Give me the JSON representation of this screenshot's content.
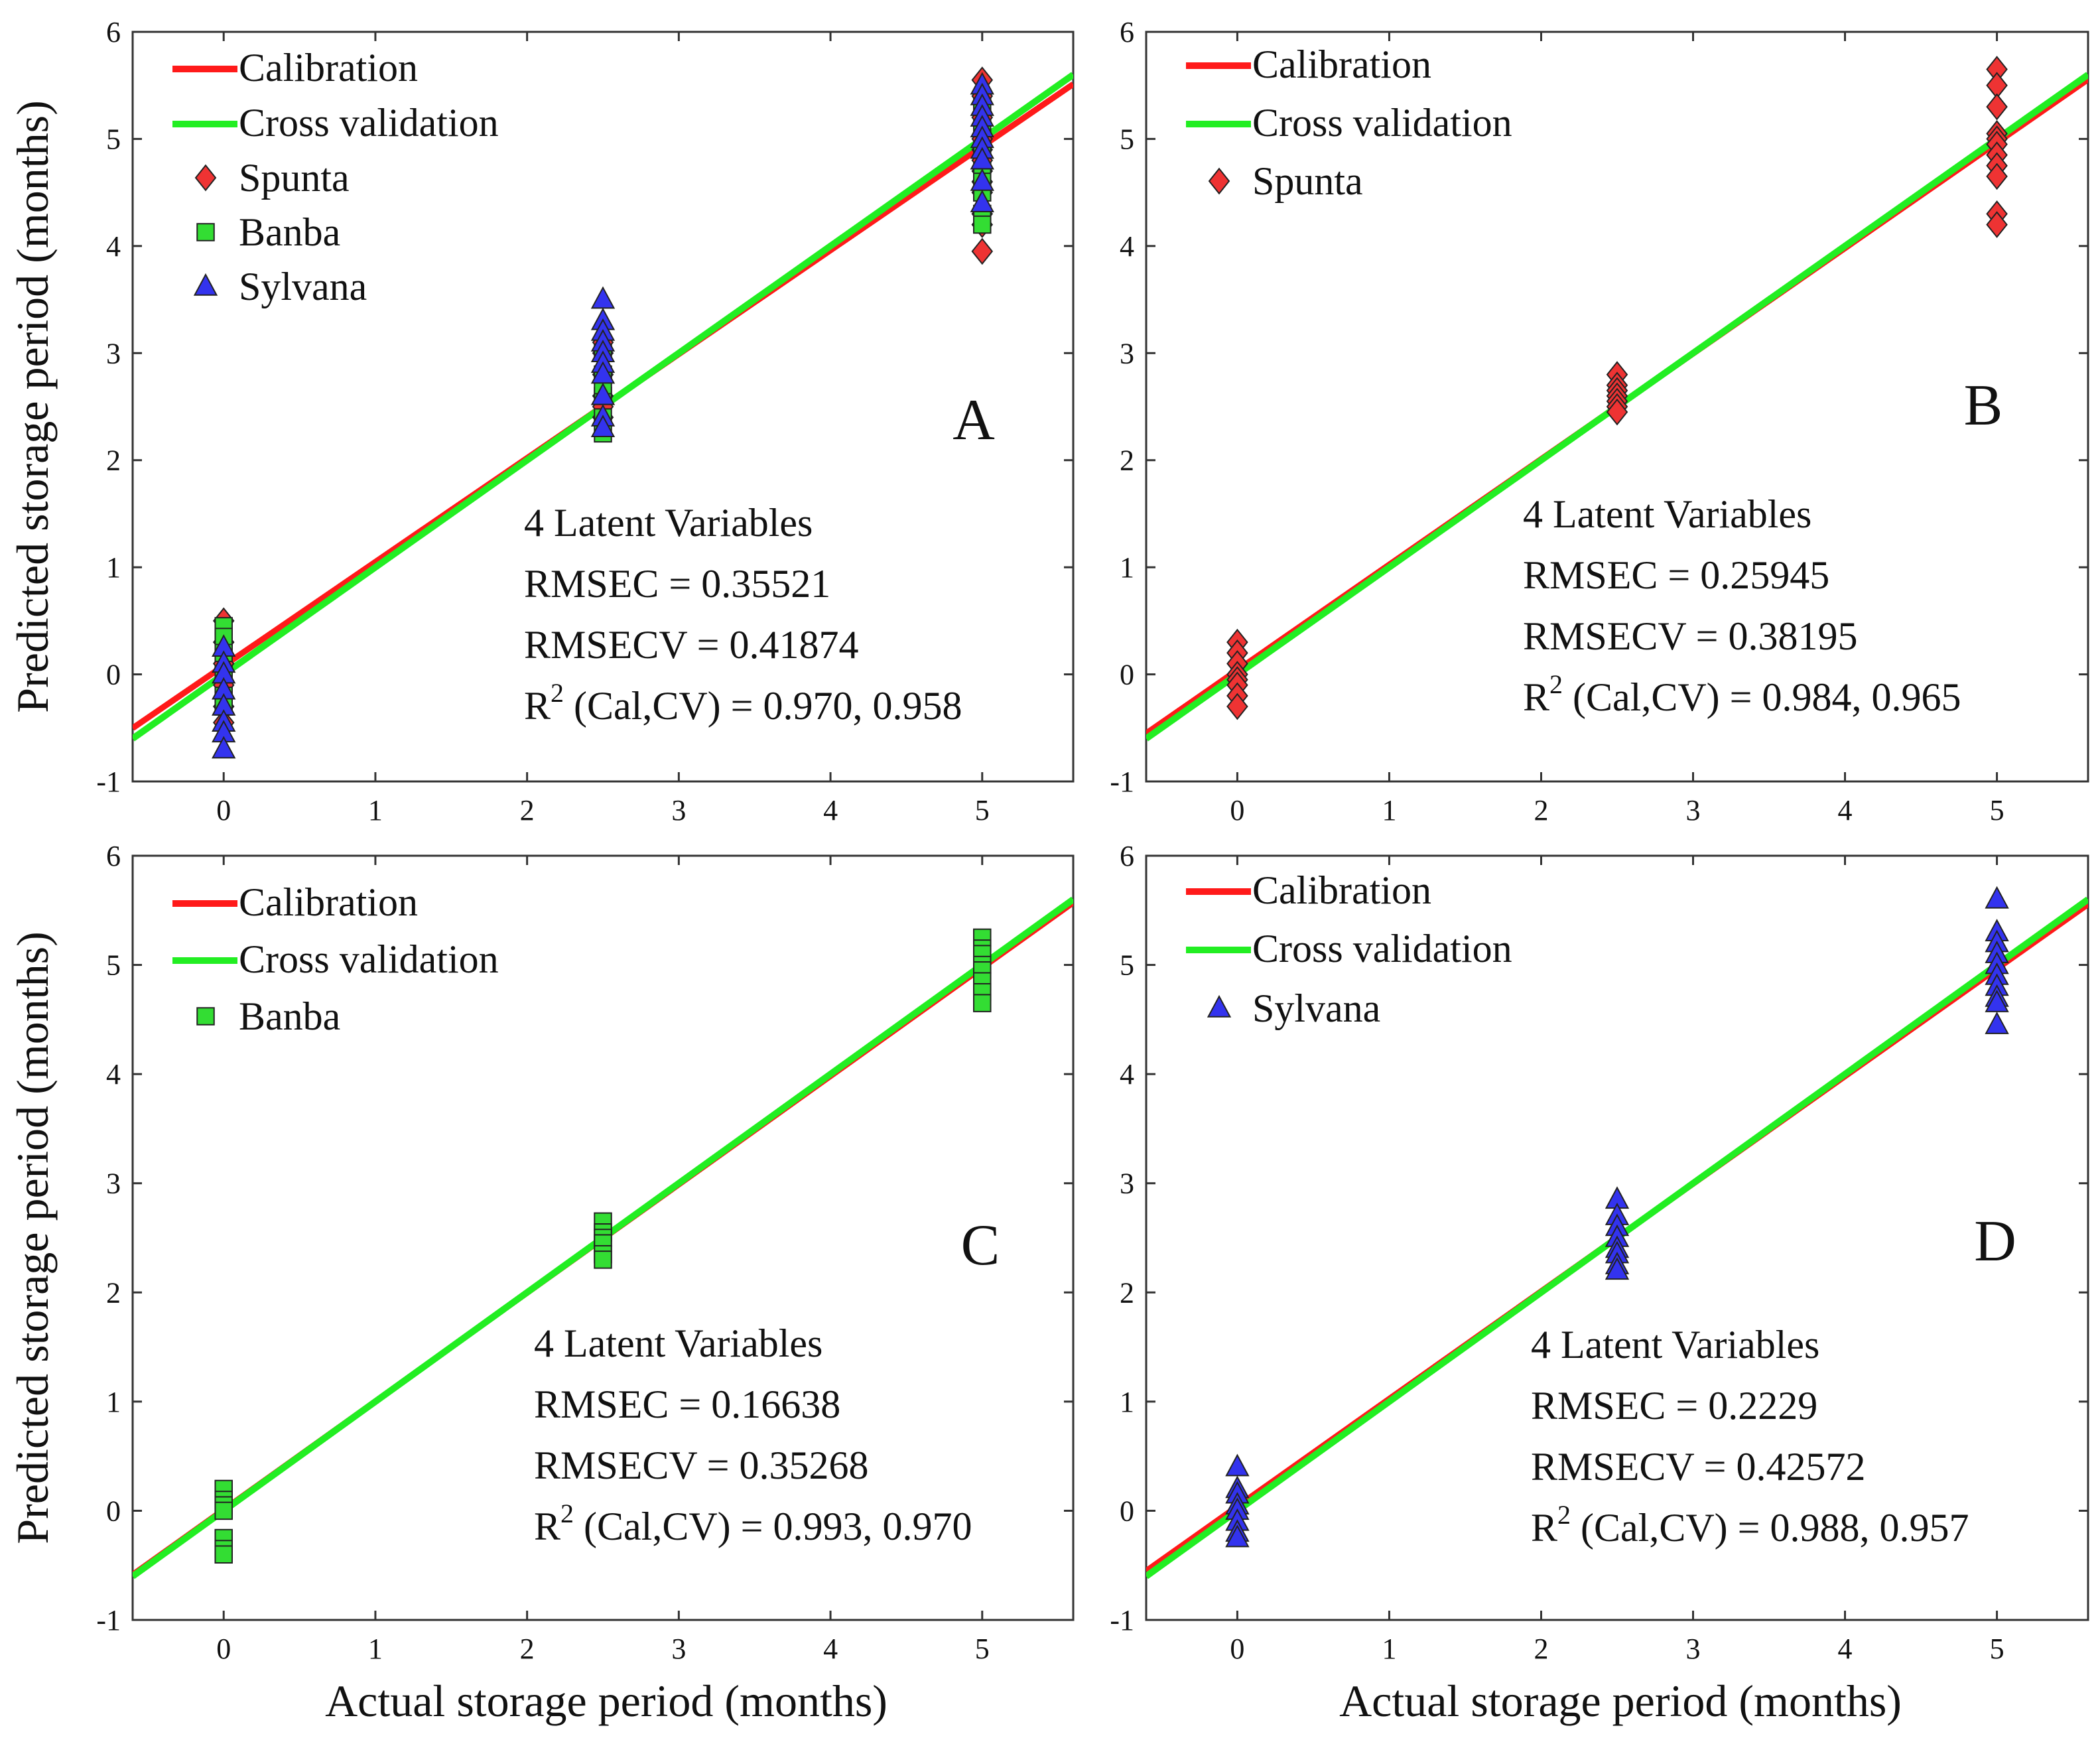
{
  "figure": {
    "xlabel": "Actual storage period (months)",
    "ylabel": "Predicted storage period (months)"
  },
  "colors": {
    "calibration": "#ff1a1a",
    "cross_validation": "#22ee22",
    "spunta": "#ee3333",
    "banba": "#33dd33",
    "sylvana": "#3333ee"
  },
  "chart_data": [
    {
      "type": "scatter",
      "panel": "A",
      "xlim": [
        -0.6,
        5.6
      ],
      "ylim": [
        -1,
        6
      ],
      "xticks": [
        0,
        1,
        2,
        3,
        4,
        5
      ],
      "yticks": [
        -1,
        0,
        1,
        2,
        3,
        4,
        5,
        6
      ],
      "xlabel": "",
      "ylabel": "Predicted storage period (months)",
      "lines": [
        {
          "name": "Calibration",
          "color": "#ff1a1a",
          "slope": 0.97,
          "intercept": 0.08
        },
        {
          "name": "Cross validation",
          "color": "#22ee22",
          "slope": 1.0,
          "intercept": 0.0
        }
      ],
      "series": [
        {
          "name": "Spunta",
          "marker": "diamond",
          "color": "#ee3333",
          "x": [
            0,
            0,
            0,
            0,
            0,
            0,
            2.5,
            2.5,
            2.5,
            2.5,
            2.5,
            2.5,
            5,
            5,
            5,
            5,
            5,
            5,
            5,
            5,
            5,
            5,
            5,
            5
          ],
          "y": [
            0.5,
            0.3,
            0.1,
            -0.1,
            -0.3,
            -0.45,
            2.4,
            2.6,
            2.8,
            3.0,
            3.1,
            2.5,
            5.55,
            5.4,
            5.2,
            5.0,
            4.9,
            4.8,
            4.7,
            4.6,
            4.5,
            4.3,
            4.2,
            3.95
          ]
        },
        {
          "name": "Banba",
          "marker": "square",
          "color": "#33dd33",
          "x": [
            0,
            0,
            0,
            0,
            0,
            0,
            2.5,
            2.5,
            2.5,
            2.5,
            2.5,
            2.5,
            5,
            5,
            5,
            5,
            5,
            5,
            5,
            5
          ],
          "y": [
            0.45,
            0.35,
            0.2,
            0.0,
            -0.2,
            -0.3,
            2.25,
            2.4,
            2.6,
            2.8,
            3.0,
            2.7,
            5.3,
            5.1,
            4.9,
            4.7,
            4.6,
            4.5,
            4.3,
            4.2
          ]
        },
        {
          "name": "Sylvana",
          "marker": "triangle",
          "color": "#3333ee",
          "x": [
            0,
            0,
            0,
            0,
            0,
            0,
            0,
            0,
            2.5,
            2.5,
            2.5,
            2.5,
            2.5,
            2.5,
            2.5,
            2.5,
            2.5,
            2.5,
            5,
            5,
            5,
            5,
            5,
            5,
            5,
            5,
            5,
            5
          ],
          "y": [
            0.25,
            0.1,
            0.0,
            -0.15,
            -0.3,
            -0.45,
            -0.55,
            -0.7,
            3.5,
            3.3,
            3.2,
            3.1,
            3.0,
            2.9,
            2.8,
            2.6,
            2.4,
            2.3,
            5.5,
            5.4,
            5.3,
            5.2,
            5.1,
            5.0,
            4.9,
            4.8,
            4.6,
            4.4
          ]
        }
      ],
      "stats": {
        "latent": "4 Latent Variables",
        "rmsec": "RMSEC = 0.35521",
        "rmsecv": "RMSECV = 0.41874",
        "r2_prefix": "R",
        "r2_sup": "2",
        "r2_suffix": " (Cal,CV) = 0.970, 0.958"
      },
      "legend": [
        "Calibration",
        "Cross validation",
        "Spunta",
        "Banba",
        "Sylvana"
      ]
    },
    {
      "type": "scatter",
      "panel": "B",
      "xlim": [
        -0.6,
        5.6
      ],
      "ylim": [
        -1,
        6
      ],
      "xticks": [
        0,
        1,
        2,
        3,
        4,
        5
      ],
      "yticks": [
        -1,
        0,
        1,
        2,
        3,
        4,
        5,
        6
      ],
      "xlabel": "",
      "ylabel": "",
      "lines": [
        {
          "name": "Calibration",
          "color": "#ff1a1a",
          "slope": 0.985,
          "intercept": 0.04
        },
        {
          "name": "Cross validation",
          "color": "#22ee22",
          "slope": 1.0,
          "intercept": 0.0
        }
      ],
      "series": [
        {
          "name": "Spunta",
          "marker": "diamond",
          "color": "#ee3333",
          "x": [
            0,
            0,
            0,
            0,
            0,
            0,
            0,
            0,
            2.5,
            2.5,
            2.5,
            2.5,
            2.5,
            2.5,
            2.5,
            5,
            5,
            5,
            5,
            5,
            5,
            5,
            5,
            5,
            5,
            5
          ],
          "y": [
            0.3,
            0.2,
            0.1,
            0.0,
            -0.05,
            -0.1,
            -0.2,
            -0.3,
            2.8,
            2.7,
            2.65,
            2.6,
            2.55,
            2.5,
            2.45,
            5.65,
            5.5,
            5.3,
            5.05,
            5.0,
            4.95,
            4.85,
            4.75,
            4.65,
            4.3,
            4.2
          ]
        }
      ],
      "stats": {
        "latent": "4 Latent Variables",
        "rmsec": "RMSEC = 0.25945",
        "rmsecv": "RMSECV = 0.38195",
        "r2_prefix": "R",
        "r2_sup": "2",
        "r2_suffix": " (Cal,CV) = 0.984, 0.965"
      },
      "legend": [
        "Calibration",
        "Cross validation",
        "Spunta"
      ]
    },
    {
      "type": "scatter",
      "panel": "C",
      "xlim": [
        -0.6,
        5.6
      ],
      "ylim": [
        -1,
        6
      ],
      "xticks": [
        0,
        1,
        2,
        3,
        4,
        5
      ],
      "yticks": [
        -1,
        0,
        1,
        2,
        3,
        4,
        5,
        6
      ],
      "xlabel": "Actual storage period (months)",
      "ylabel": "Predicted storage period (months)",
      "lines": [
        {
          "name": "Calibration",
          "color": "#ff1a1a",
          "slope": 0.993,
          "intercept": 0.01
        },
        {
          "name": "Cross validation",
          "color": "#22ee22",
          "slope": 1.0,
          "intercept": 0.0
        }
      ],
      "series": [
        {
          "name": "Banba",
          "marker": "square",
          "color": "#33dd33",
          "x": [
            0,
            0,
            0,
            0,
            0,
            0,
            0,
            2.5,
            2.5,
            2.5,
            2.5,
            2.5,
            2.5,
            5,
            5,
            5,
            5,
            5,
            5,
            5,
            5
          ],
          "y": [
            0.2,
            0.1,
            0.05,
            0.0,
            -0.25,
            -0.35,
            -0.4,
            2.65,
            2.55,
            2.5,
            2.45,
            2.35,
            2.3,
            5.25,
            5.15,
            5.1,
            5.0,
            4.95,
            4.85,
            4.75,
            4.65
          ]
        }
      ],
      "stats": {
        "latent": "4 Latent Variables",
        "rmsec": "RMSEC = 0.16638",
        "rmsecv": "RMSECV = 0.35268",
        "r2_prefix": "R",
        "r2_sup": "2",
        "r2_suffix": " (Cal,CV) = 0.993, 0.970"
      },
      "legend": [
        "Calibration",
        "Cross validation",
        "Banba"
      ]
    },
    {
      "type": "scatter",
      "panel": "D",
      "xlim": [
        -0.6,
        5.6
      ],
      "ylim": [
        -1,
        6
      ],
      "xticks": [
        0,
        1,
        2,
        3,
        4,
        5
      ],
      "yticks": [
        -1,
        0,
        1,
        2,
        3,
        4,
        5,
        6
      ],
      "xlabel": "Actual storage period (months)",
      "ylabel": "",
      "lines": [
        {
          "name": "Calibration",
          "color": "#ff1a1a",
          "slope": 0.985,
          "intercept": 0.04
        },
        {
          "name": "Cross validation",
          "color": "#22ee22",
          "slope": 1.0,
          "intercept": 0.0
        }
      ],
      "series": [
        {
          "name": "Sylvana",
          "marker": "triangle",
          "color": "#3333ee",
          "x": [
            0,
            0,
            0,
            0,
            0,
            0,
            0,
            0,
            2.5,
            2.5,
            2.5,
            2.5,
            2.5,
            2.5,
            2.5,
            2.5,
            5,
            5,
            5,
            5,
            5,
            5,
            5,
            5,
            5,
            5
          ],
          "y": [
            0.4,
            0.2,
            0.15,
            0.05,
            0.0,
            -0.1,
            -0.2,
            -0.25,
            2.85,
            2.7,
            2.6,
            2.5,
            2.4,
            2.35,
            2.25,
            2.2,
            5.6,
            5.3,
            5.2,
            5.1,
            5.0,
            4.9,
            4.8,
            4.7,
            4.65,
            4.45
          ]
        }
      ],
      "stats": {
        "latent": "4 Latent Variables",
        "rmsec": "RMSEC = 0.2229",
        "rmsecv": "RMSECV = 0.42572",
        "r2_prefix": "R",
        "r2_sup": "2",
        "r2_suffix": " (Cal,CV) = 0.988, 0.957"
      },
      "legend": [
        "Calibration",
        "Cross validation",
        "Sylvana"
      ]
    }
  ]
}
